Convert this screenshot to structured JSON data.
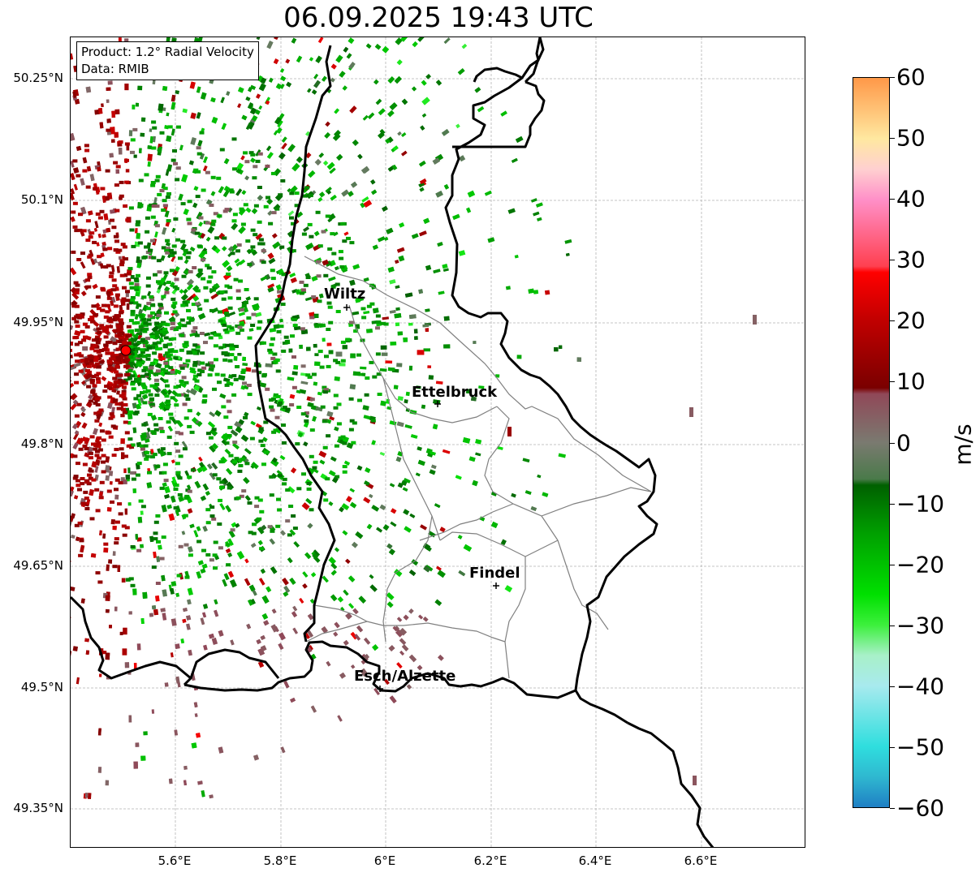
{
  "title": "06.09.2025 19:43 UTC",
  "info": {
    "product": "Product: 1.2° Radial Velocity",
    "data_source": "Data: RMIB"
  },
  "lat_ticks": [
    "50.25°N",
    "50.1°N",
    "49.95°N",
    "49.8°N",
    "49.65°N",
    "49.5°N",
    "49.35°N"
  ],
  "lon_ticks": [
    "5.6°E",
    "5.8°E",
    "6°E",
    "6.2°E",
    "6.4°E",
    "6.6°E"
  ],
  "cities": [
    {
      "name": "Wiltz"
    },
    {
      "name": "Ettelbruck"
    },
    {
      "name": "Findel"
    },
    {
      "name": "Esch/Alzette"
    }
  ],
  "colorbar": {
    "unit": "m/s",
    "min": -60,
    "max": 60,
    "ticks": [
      "60",
      "50",
      "40",
      "30",
      "20",
      "10",
      "0",
      "−10",
      "−20",
      "−30",
      "−40",
      "−50",
      "−60"
    ],
    "stops": [
      {
        "value": -60,
        "color": "#1f7fc4"
      },
      {
        "value": -55,
        "color": "#2fb8d0"
      },
      {
        "value": -50,
        "color": "#2fdede"
      },
      {
        "value": -40,
        "color": "#a8eaee"
      },
      {
        "value": -35,
        "color": "#a8f0c8"
      },
      {
        "value": -30,
        "color": "#3cf03c"
      },
      {
        "value": -25,
        "color": "#00e000"
      },
      {
        "value": -15,
        "color": "#00a000"
      },
      {
        "value": -7,
        "color": "#006000"
      },
      {
        "value": -6,
        "color": "#4a7a4a"
      },
      {
        "value": 0,
        "color": "#7a7a70"
      },
      {
        "value": 8,
        "color": "#904858"
      },
      {
        "value": 9,
        "color": "#7a0000"
      },
      {
        "value": 20,
        "color": "#c00000"
      },
      {
        "value": 28,
        "color": "#ff0000"
      },
      {
        "value": 29,
        "color": "#ff4050"
      },
      {
        "value": 40,
        "color": "#ff90c8"
      },
      {
        "value": 45,
        "color": "#ffd0d0"
      },
      {
        "value": 50,
        "color": "#ffe8a0"
      },
      {
        "value": 60,
        "color": "#ff9848"
      }
    ]
  },
  "radar_site": {
    "color": "#ff0000"
  },
  "colors": {
    "border": "#000000",
    "canton_lines": "#808080",
    "grid": "#b4b4b4"
  }
}
